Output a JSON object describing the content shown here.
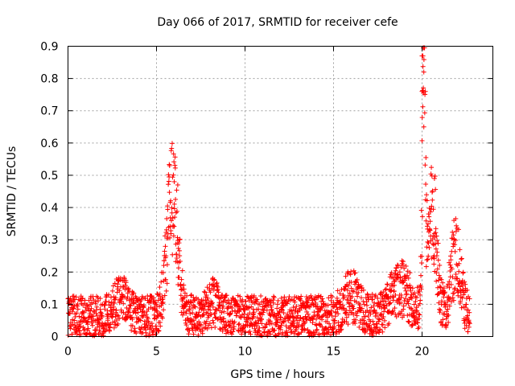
{
  "chart_data": {
    "type": "scatter",
    "title": "Day 066 of 2017, SRMTID for receiver cefe",
    "xlabel": "GPS time / hours",
    "ylabel": "SRMTID / TECUs",
    "xlim": [
      0,
      24
    ],
    "ylim": [
      0,
      0.9
    ],
    "xticks": [
      0,
      5,
      10,
      15,
      20
    ],
    "xtick_labels": [
      "0",
      "5",
      "10",
      "15",
      "20"
    ],
    "yticks": [
      0,
      0.1,
      0.2,
      0.3,
      0.4,
      0.5,
      0.6,
      0.7,
      0.8,
      0.9
    ],
    "ytick_labels": [
      "0",
      "0.1",
      "0.2",
      "0.3",
      "0.4",
      "0.5",
      "0.6",
      "0.7",
      "0.8",
      "0.9"
    ],
    "grid": true,
    "marker": "+",
    "color": "#ff0000",
    "series": [
      {
        "name": "SRMTID",
        "x_range": [
          0,
          22.7
        ],
        "baseline": 0.065,
        "noise": 0.04,
        "peaks": [
          {
            "center": 5.9,
            "width": 0.45,
            "height": 0.36
          },
          {
            "center": 20.1,
            "width": 0.12,
            "height": 0.78
          },
          {
            "center": 20.6,
            "width": 0.35,
            "height": 0.32
          },
          {
            "center": 21.9,
            "width": 0.4,
            "height": 0.18
          },
          {
            "center": 16.0,
            "width": 0.6,
            "height": 0.06
          },
          {
            "center": 18.8,
            "width": 0.8,
            "height": 0.08
          },
          {
            "center": 3.0,
            "width": 0.5,
            "height": 0.05
          },
          {
            "center": 8.2,
            "width": 0.4,
            "height": 0.04
          }
        ],
        "highlights": [
          {
            "x": 20.0,
            "y": 0.87
          },
          {
            "x": 20.05,
            "y": 0.87
          },
          {
            "x": 20.1,
            "y": 0.82
          },
          {
            "x": 20.0,
            "y": 0.76
          },
          {
            "x": 20.1,
            "y": 0.65
          },
          {
            "x": 6.0,
            "y": 0.48
          },
          {
            "x": 6.2,
            "y": 0.47
          },
          {
            "x": 20.7,
            "y": 0.49
          },
          {
            "x": 21.8,
            "y": 0.36
          }
        ]
      }
    ]
  }
}
